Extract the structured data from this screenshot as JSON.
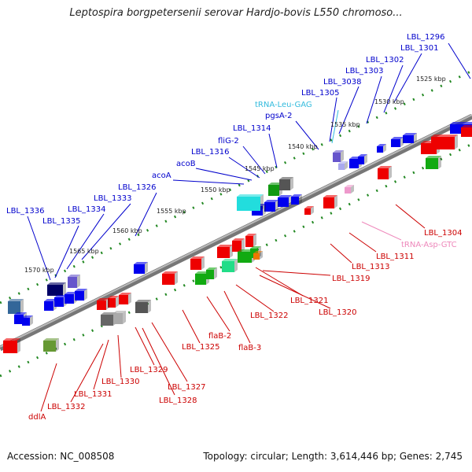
{
  "title": "Leptospira borgpetersenii serovar Hardjo-bovis L550 chromoso...",
  "footer": {
    "accession": "Accession: NC_008508",
    "topology": "Topology: circular; Length: 3,614,446 bp; Genes: 2,745"
  },
  "colors": {
    "forward_label": "#0000cc",
    "reverse_label": "#cc0000",
    "trna_forward": "#33bbdd",
    "trna_reverse": "#ee88bb",
    "tick": "#228822",
    "backbone": "#888888"
  },
  "kbp_ticks": [
    "1525 kbp",
    "1530 kbp",
    "1535 kbp",
    "1540 kbp",
    "1545 kbp",
    "1550 kbp",
    "1555 kbp",
    "1560 kbp",
    "1565 kbp",
    "1570 kbp"
  ],
  "forward_labels": [
    "LBL_1296",
    "LBL_1301",
    "LBL_1302",
    "LBL_1303",
    "LBL_3038",
    "LBL_1305",
    "tRNA-Leu-GAG",
    "pgsA-2",
    "LBL_1314",
    "fliG-2",
    "LBL_1316",
    "acoB",
    "acoA",
    "LBL_1326",
    "LBL_1333",
    "LBL_1334",
    "LBL_1335",
    "LBL_1336"
  ],
  "reverse_labels": [
    "LBL_1304",
    "tRNA-Asp-GTC",
    "LBL_1311",
    "LBL_1313",
    "LBL_1319",
    "LBL_1321",
    "LBL_1320",
    "LBL_1322",
    "flaB-3",
    "flaB-2",
    "LBL_1325",
    "LBL_1327",
    "LBL_1328",
    "LBL_1329",
    "LBL_1330",
    "LBL_1331",
    "LBL_1332",
    "ddlA"
  ]
}
